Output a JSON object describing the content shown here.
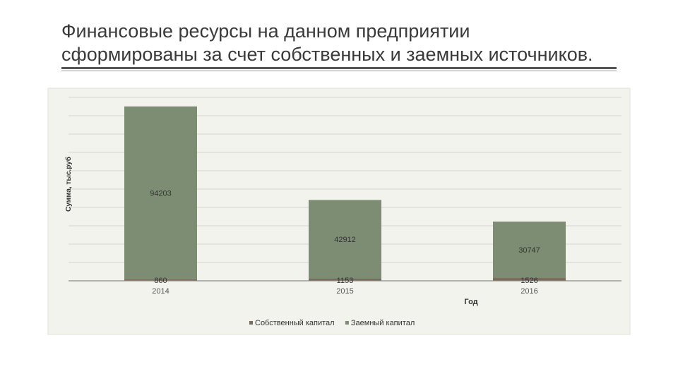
{
  "slide": {
    "title_line1": "Финансовые ресурсы на данном предприятии",
    "title_line2": "сформированы за счет собственных и заемных источников."
  },
  "colors": {
    "own_capital": "#7a6a5a",
    "borrowed_capital": "#7d8d74",
    "panel": "#f3f3ee",
    "grid": "#d4d4cc"
  },
  "chart_data": {
    "type": "bar",
    "stacked": true,
    "categories": [
      "2014",
      "2015",
      "2016"
    ],
    "series": [
      {
        "name": "Собственный капитал",
        "values": [
          860,
          1153,
          1526
        ],
        "labels": [
          "860",
          "1153",
          "1526"
        ]
      },
      {
        "name": "Заемный капитал",
        "values": [
          94203,
          42912,
          30747
        ],
        "labels": [
          "94203",
          "42912",
          "30747"
        ]
      }
    ],
    "xlabel": "Год",
    "ylabel": "Сумма, тыс.руб",
    "ylim": [
      0,
      100000
    ],
    "grid": true,
    "legend": "bottom"
  }
}
